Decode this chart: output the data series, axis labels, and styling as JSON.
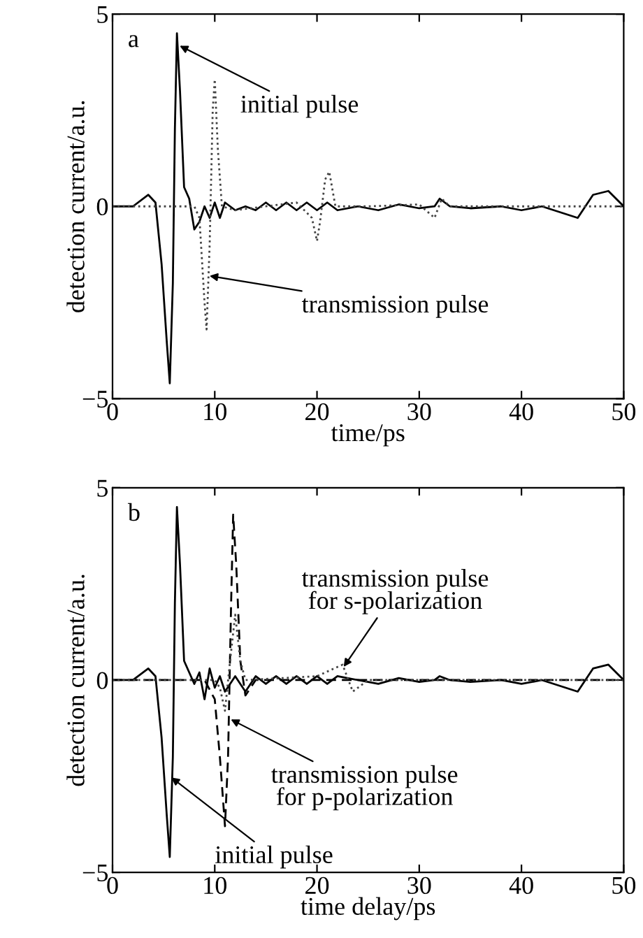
{
  "chart_data": [
    {
      "type": "line",
      "xlabel": "time/ps",
      "ylabel": "detection current/a.u.",
      "xlim": [
        0,
        50
      ],
      "ylim": [
        -5,
        5
      ],
      "xticks": [
        0,
        10,
        20,
        30,
        40,
        50
      ],
      "yticks": [
        -5,
        0,
        5
      ],
      "grid": false,
      "legend": false,
      "marker": "none",
      "annotations": [
        "a",
        {
          "text": "initial pulse",
          "x": 6.4,
          "y": 4.2
        },
        {
          "text": "transmission pulse",
          "x": 9.3,
          "y": -1.8
        }
      ],
      "series": [
        {
          "color": "#000000",
          "line_style": "solid",
          "x": [
            0,
            2,
            3.5,
            4.2,
            4.8,
            5.3,
            5.6,
            5.9,
            6.1,
            6.3,
            6.6,
            7,
            7.5,
            8,
            8.5,
            9,
            9.5,
            10,
            10.5,
            11,
            12,
            13,
            14,
            15,
            16,
            17,
            18,
            19,
            20,
            21,
            22,
            24,
            26,
            28,
            30,
            31.5,
            32,
            33,
            35,
            38,
            40,
            42,
            45.5,
            47,
            48.5,
            50
          ],
          "values": [
            0,
            0,
            0.3,
            0.1,
            -1.5,
            -3.5,
            -4.6,
            -2,
            2,
            4.5,
            3,
            0.5,
            0.2,
            -0.6,
            -0.4,
            0,
            -0.3,
            0.1,
            -0.3,
            0.1,
            -0.1,
            0,
            -0.1,
            0.1,
            -0.1,
            0.1,
            -0.1,
            0.1,
            -0.1,
            0.1,
            -0.1,
            0,
            -0.1,
            0.05,
            -0.05,
            0,
            0.2,
            0,
            -0.05,
            0,
            -0.1,
            0,
            -0.3,
            0.3,
            0.4,
            0
          ]
        },
        {
          "color": "#444444",
          "line_style": "dotted",
          "x": [
            0,
            8,
            8.5,
            9,
            9.2,
            9.5,
            9.8,
            10,
            10.3,
            10.7,
            12,
            15,
            18,
            19.5,
            20,
            20.3,
            20.8,
            21.2,
            21.8,
            25,
            30,
            31.5,
            32.2,
            33,
            40,
            50
          ],
          "values": [
            0,
            0,
            -0.3,
            -2.5,
            -3.2,
            -1,
            2.5,
            3.3,
            1.5,
            0,
            -0.1,
            0,
            0.1,
            -0.3,
            -0.9,
            -0.4,
            0.7,
            0.9,
            0,
            0,
            0.05,
            -0.3,
            0.2,
            0,
            0,
            0
          ]
        }
      ]
    },
    {
      "type": "line",
      "xlabel": "time delay/ps",
      "ylabel": "detection current/a.u.",
      "xlim": [
        0,
        50
      ],
      "ylim": [
        -5,
        5
      ],
      "xticks": [
        0,
        10,
        20,
        30,
        40,
        50
      ],
      "yticks": [
        -5,
        0,
        5
      ],
      "grid": false,
      "legend": false,
      "marker": "none",
      "annotations": [
        "b",
        {
          "text": "transmission pulse\nfor s-polarization",
          "x": 22.5,
          "y": 0.3
        },
        {
          "text": "transmission pulse\nfor p-polarization",
          "x": 11.4,
          "y": -1.0
        },
        {
          "text": "initial pulse",
          "x": 5.6,
          "y": -2.5
        }
      ],
      "series": [
        {
          "color": "#000000",
          "line_style": "solid",
          "x": [
            0,
            2,
            3.5,
            4.2,
            4.8,
            5.3,
            5.6,
            5.9,
            6.1,
            6.3,
            6.6,
            7,
            7.5,
            8,
            8.5,
            9,
            9.5,
            10,
            10.5,
            11,
            12,
            13,
            14,
            15,
            16,
            17,
            18,
            19,
            20,
            21,
            22,
            24,
            26,
            28,
            30,
            31.5,
            32,
            33,
            35,
            38,
            40,
            42,
            45.5,
            47,
            48.5,
            50
          ],
          "values": [
            0,
            0,
            0.3,
            0.1,
            -1.5,
            -3.5,
            -4.6,
            -2,
            2,
            4.5,
            3,
            0.5,
            0.2,
            -0.1,
            0.2,
            -0.5,
            0.3,
            -0.2,
            0.1,
            -0.3,
            0.1,
            -0.3,
            0.1,
            -0.1,
            0.1,
            -0.1,
            0.1,
            -0.1,
            0.1,
            -0.1,
            0.1,
            0,
            -0.1,
            0.05,
            -0.05,
            0,
            0.1,
            0,
            -0.05,
            0,
            -0.1,
            0,
            -0.3,
            0.3,
            0.4,
            0
          ]
        },
        {
          "color": "#000000",
          "line_style": "dashed",
          "x": [
            0,
            9,
            10,
            10.5,
            11,
            11.3,
            11.6,
            11.8,
            12.1,
            12.5,
            13,
            14,
            20,
            50
          ],
          "values": [
            0,
            0,
            -0.5,
            -2,
            -3.8,
            -2,
            2,
            4.3,
            3,
            0.5,
            -0.4,
            0,
            0,
            0
          ]
        },
        {
          "color": "#444444",
          "line_style": "dotted",
          "x": [
            0,
            10,
            10.5,
            11,
            11.5,
            12,
            12.5,
            13,
            20,
            22.5,
            23.5,
            25,
            50
          ],
          "values": [
            0,
            0,
            -0.2,
            -0.8,
            0.5,
            1.7,
            0.5,
            0,
            0.1,
            0.4,
            -0.3,
            0,
            0
          ]
        }
      ]
    }
  ]
}
